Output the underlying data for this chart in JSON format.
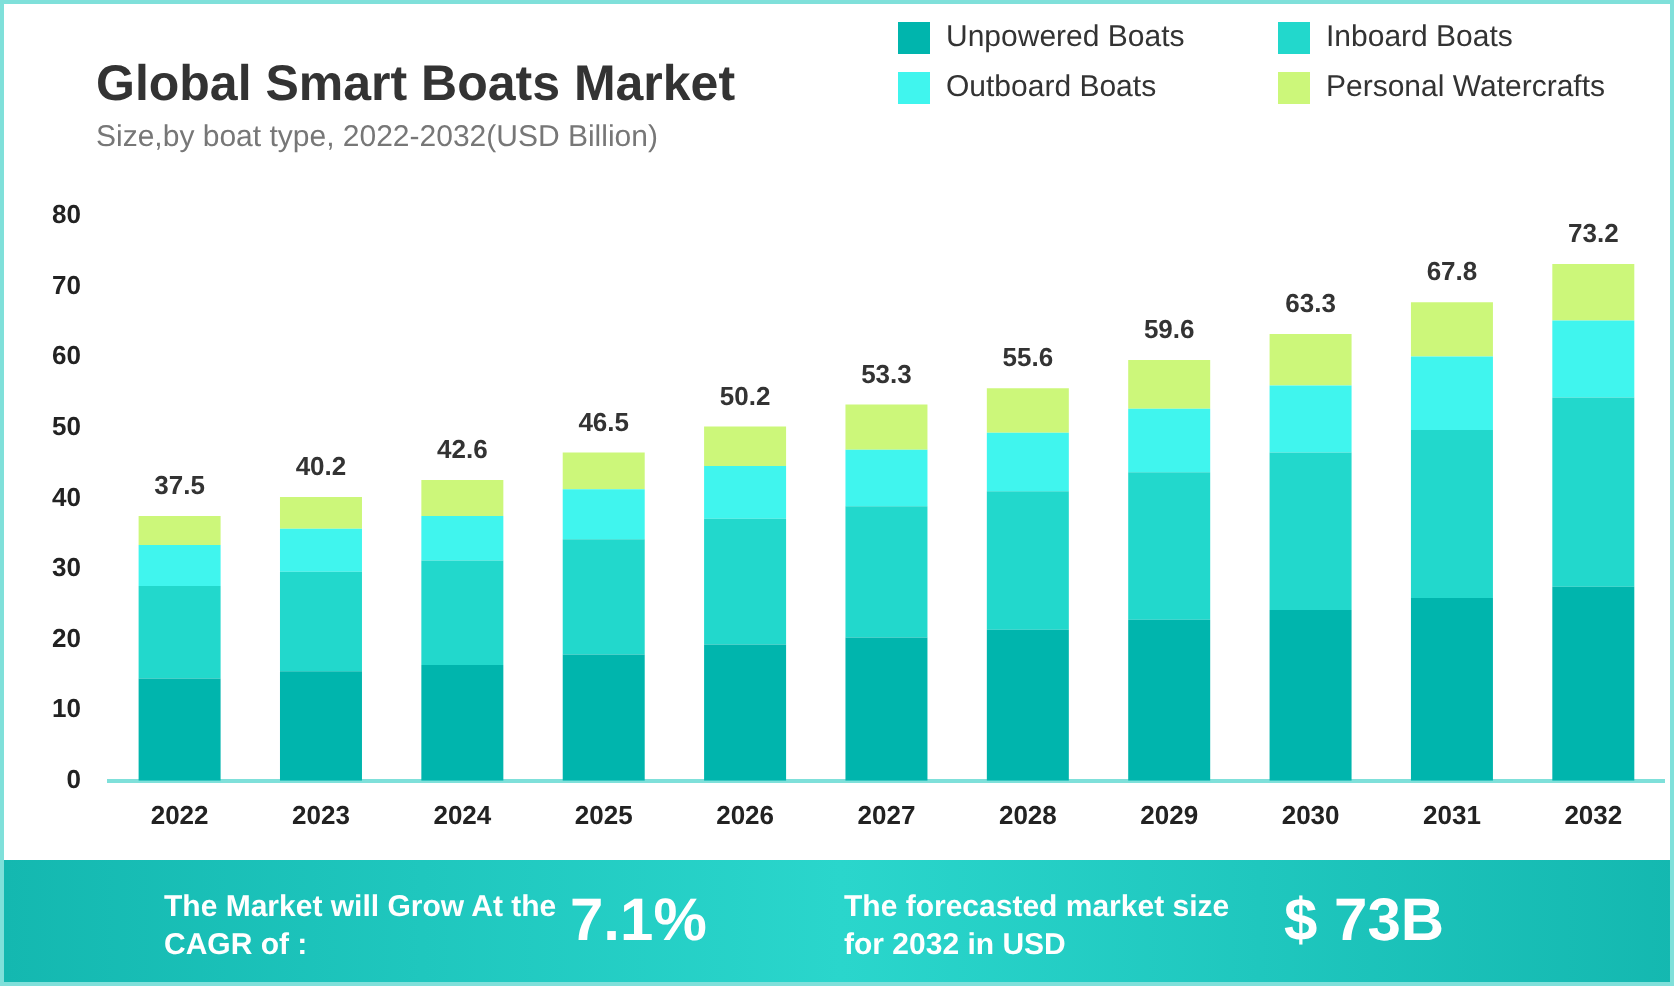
{
  "chart_data": {
    "type": "bar",
    "title": "Global Smart Boats Market",
    "subtitle": "Size,by boat type, 2022-2032(USD Billion)",
    "categories": [
      "2022",
      "2023",
      "2024",
      "2025",
      "2026",
      "2027",
      "2028",
      "2029",
      "2030",
      "2031",
      "2032"
    ],
    "stacked": true,
    "series": [
      {
        "name": "Unpowered Boats",
        "color": "#00b5ad",
        "values": [
          14.5,
          15.5,
          16.4,
          17.9,
          19.3,
          20.3,
          21.4,
          22.8,
          24.2,
          25.9,
          27.5
        ]
      },
      {
        "name": "Inboard Boats",
        "color": "#22d8cc",
        "values": [
          13.1,
          14.1,
          14.8,
          16.3,
          17.8,
          18.6,
          19.6,
          20.9,
          22.3,
          23.8,
          26.8
        ]
      },
      {
        "name": "Outboard Boats",
        "color": "#40f5ee",
        "values": [
          5.8,
          6.1,
          6.3,
          7.1,
          7.5,
          8.0,
          8.3,
          9.0,
          9.5,
          10.4,
          10.9
        ]
      },
      {
        "name": "Personal Watercrafts",
        "color": "#ccf77a",
        "values": [
          4.1,
          4.5,
          5.1,
          5.2,
          5.6,
          6.4,
          6.3,
          6.9,
          7.3,
          7.7,
          8.0
        ]
      }
    ],
    "totals": [
      "37.5",
      "40.2",
      "42.6",
      "46.5",
      "50.2",
      "53.3",
      "55.6",
      "59.6",
      "63.3",
      "67.8",
      "73.2"
    ],
    "ylim": [
      0,
      80
    ],
    "yticks": [
      0,
      10,
      20,
      30,
      40,
      50,
      60,
      70,
      80
    ],
    "grid": false,
    "legend": "top right",
    "annotations": [
      "The Market will Grow At the CAGR of :",
      "7.1%",
      "The forecasted market size for 2032 in USD",
      "$ 73B"
    ]
  }
}
